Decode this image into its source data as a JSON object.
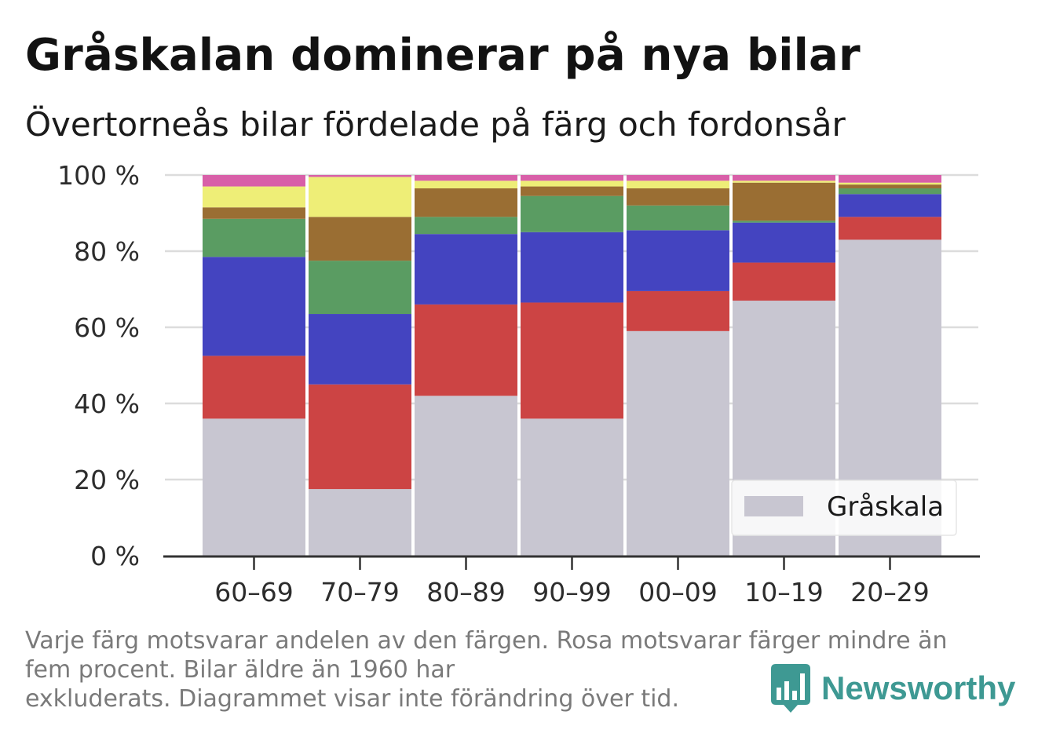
{
  "header": {
    "title": "Gråskalan dominerar på nya bilar",
    "subtitle": "Övertorneås bilar fördelade på färg och fordonsår"
  },
  "footer": {
    "note_line1": "Varje färg motsvarar andelen av den färgen. Rosa motsvarar färger mindre än",
    "note_line2": "fem procent. Bilar äldre än 1960 har",
    "note_line3": "exkluderats. Diagrammet visar inte förändring över tid.",
    "brand": "Newsworthy",
    "brand_color": "#3e9993"
  },
  "legend": {
    "label": "Gråskala",
    "icon": "gray-swatch",
    "placement": "bottom-right"
  },
  "chart_data": {
    "type": "bar",
    "stacked": true,
    "categories": [
      "60–69",
      "70–79",
      "80–89",
      "90–99",
      "00–09",
      "10–19",
      "20–29"
    ],
    "ylim": [
      0,
      100
    ],
    "yticks": [
      0,
      20,
      40,
      60,
      80,
      100
    ],
    "ytick_labels": [
      "0 %",
      "20 %",
      "40 %",
      "60 %",
      "80 %",
      "100 %"
    ],
    "grid": true,
    "series": [
      {
        "name": "Gråskala",
        "color": "#c8c6d1",
        "values": [
          36,
          17.5,
          42,
          36,
          59,
          67,
          83
        ]
      },
      {
        "color": "#cc4444",
        "values": [
          16.5,
          27.5,
          24,
          30.5,
          10.5,
          10,
          6
        ]
      },
      {
        "color": "#4444c0",
        "values": [
          26,
          18.5,
          18.5,
          18.5,
          16,
          10.5,
          6
        ]
      },
      {
        "color": "#5a9c62",
        "values": [
          10,
          14,
          4.5,
          9.5,
          6.5,
          0.5,
          1.5
        ]
      },
      {
        "color": "#9a6e33",
        "values": [
          3,
          11.5,
          7.5,
          2.5,
          4.5,
          10,
          1
        ]
      },
      {
        "color": "#eeee77",
        "values": [
          5.5,
          10.5,
          2,
          1.5,
          2,
          0.5,
          0.5
        ]
      },
      {
        "color": "#d85fa8",
        "values": [
          3,
          0.5,
          1.5,
          1.5,
          1.5,
          1.5,
          2
        ]
      }
    ]
  }
}
